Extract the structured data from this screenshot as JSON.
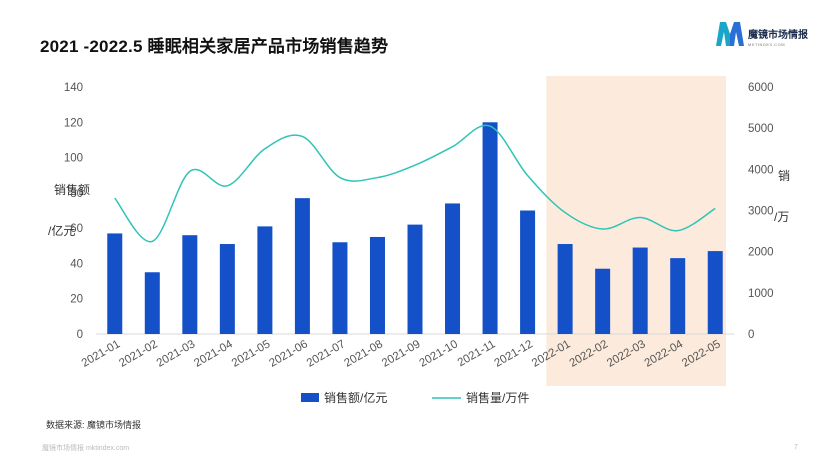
{
  "page": {
    "title": "2021 -2022.5  睡眠相关家居产品市场销售趋势",
    "logo_name": "魔镜市场情报",
    "logo_sub": "MKTINDEX.COM",
    "logo_letter": "M",
    "source": "数据来源:  魔镜市场情报",
    "footer": "魔镜市场情报 mktindex.com",
    "page_number": "7"
  },
  "colors": {
    "bar": "#1450c8",
    "line": "#2ec4b6",
    "highlight": "#fcebdc",
    "logo_left": "#1aa6c9",
    "logo_right": "#2a6fd6"
  },
  "chart_data": {
    "type": "bar",
    "title": "2021 -2022.5  睡眠相关家居产品市场销售趋势",
    "categories": [
      "2021-01",
      "2021-02",
      "2021-03",
      "2021-04",
      "2021-05",
      "2021-06",
      "2021-07",
      "2021-08",
      "2021-09",
      "2021-10",
      "2021-11",
      "2021-12",
      "2022-01",
      "2022-02",
      "2022-03",
      "2022-04",
      "2022-05"
    ],
    "series": [
      {
        "name": "销售额/亿元",
        "type": "bar",
        "axis": "left",
        "values": [
          57,
          35,
          56,
          51,
          61,
          77,
          52,
          55,
          62,
          74,
          120,
          70,
          51,
          37,
          49,
          43,
          47
        ]
      },
      {
        "name": "销售量/万件",
        "type": "line",
        "axis": "right",
        "values": [
          3300,
          2250,
          3950,
          3600,
          4500,
          4800,
          3800,
          3800,
          4100,
          4550,
          5050,
          3850,
          2950,
          2550,
          2830,
          2510,
          3050
        ]
      }
    ],
    "left_axis": {
      "label_lines": [
        "销售额",
        "/亿元"
      ],
      "ylim": [
        0,
        140
      ],
      "ticks": [
        "0",
        "20",
        "40",
        "60",
        "80",
        "100",
        "120",
        "140"
      ]
    },
    "right_axis": {
      "label_lines": [
        "销",
        "/万"
      ],
      "ylim": [
        0,
        6000
      ],
      "ticks": [
        "0",
        "1000",
        "2000",
        "3000",
        "4000",
        "5000",
        "6000"
      ]
    },
    "highlight_categories": [
      "2022-01",
      "2022-02",
      "2022-03",
      "2022-04",
      "2022-05"
    ],
    "legend": {
      "position": "bottom",
      "entries": [
        "销售额/亿元",
        "销售量/万件"
      ]
    }
  }
}
